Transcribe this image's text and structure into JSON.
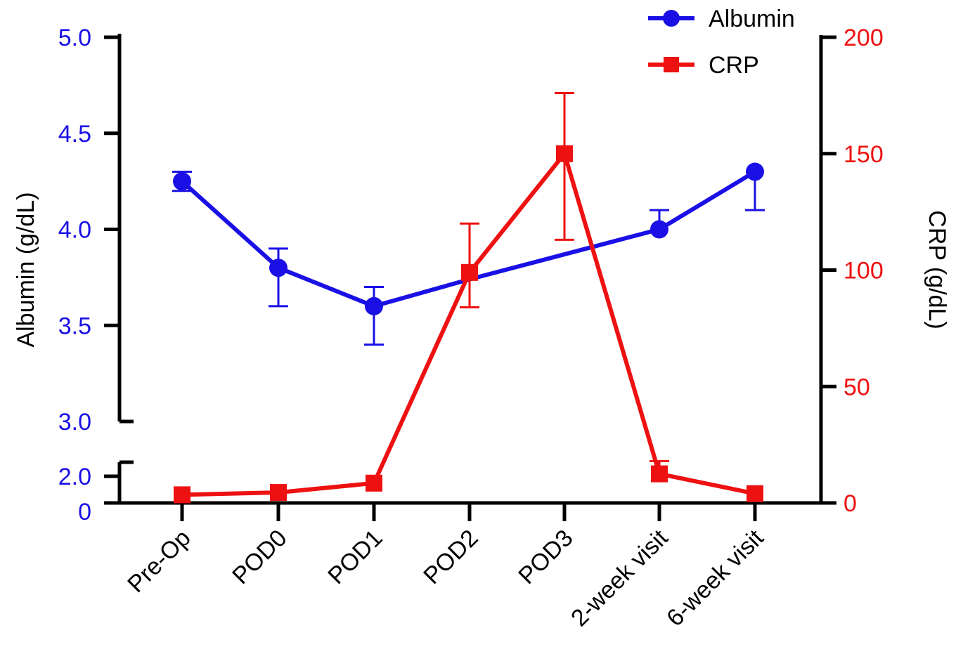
{
  "chart_data": {
    "type": "line",
    "title": "",
    "categories": [
      "Pre-Op",
      "POD0",
      "POD1",
      "POD2",
      "POD3",
      "2-week visit",
      "6-week visit"
    ],
    "ylabel_left": "Albumin (g/dL)",
    "ylabel_right": "CRP (g/dL)",
    "y_left_ticks": [
      {
        "label": "0",
        "value": 0
      },
      {
        "label": "2.0",
        "value": 2.0
      },
      {
        "label": "3.0",
        "value": 3.0
      },
      {
        "label": "3.5",
        "value": 3.5
      },
      {
        "label": "4.0",
        "value": 4.0
      },
      {
        "label": "4.5",
        "value": 4.5
      },
      {
        "label": "5.0",
        "value": 5.0
      }
    ],
    "y_left_broken_axis": {
      "lower_segment": [
        0,
        2.0
      ],
      "upper_segment": [
        3.0,
        5.0
      ]
    },
    "y_right_ticks": [
      0,
      50,
      100,
      150,
      200
    ],
    "y_right_range": [
      0,
      200
    ],
    "legend_position": "top-right",
    "series": [
      {
        "name": "Albumin",
        "axis": "left",
        "color": "#1a10e6",
        "marker": "circle",
        "values": [
          4.25,
          3.8,
          3.6,
          3.74,
          3.87,
          4.0,
          4.3
        ],
        "err_low": [
          4.2,
          3.6,
          3.4,
          null,
          null,
          null,
          4.1
        ],
        "err_high": [
          4.3,
          3.9,
          3.7,
          null,
          null,
          4.1,
          null
        ],
        "show_marker": [
          true,
          true,
          true,
          false,
          false,
          true,
          true
        ]
      },
      {
        "name": "CRP",
        "axis": "right",
        "color": "#ee1111",
        "marker": "square",
        "values": [
          3.5,
          4.5,
          8.5,
          99,
          150,
          12.5,
          4
        ],
        "err_low": [
          null,
          null,
          null,
          84,
          113,
          null,
          null
        ],
        "err_high": [
          null,
          null,
          null,
          120,
          176,
          18,
          null
        ]
      }
    ]
  }
}
